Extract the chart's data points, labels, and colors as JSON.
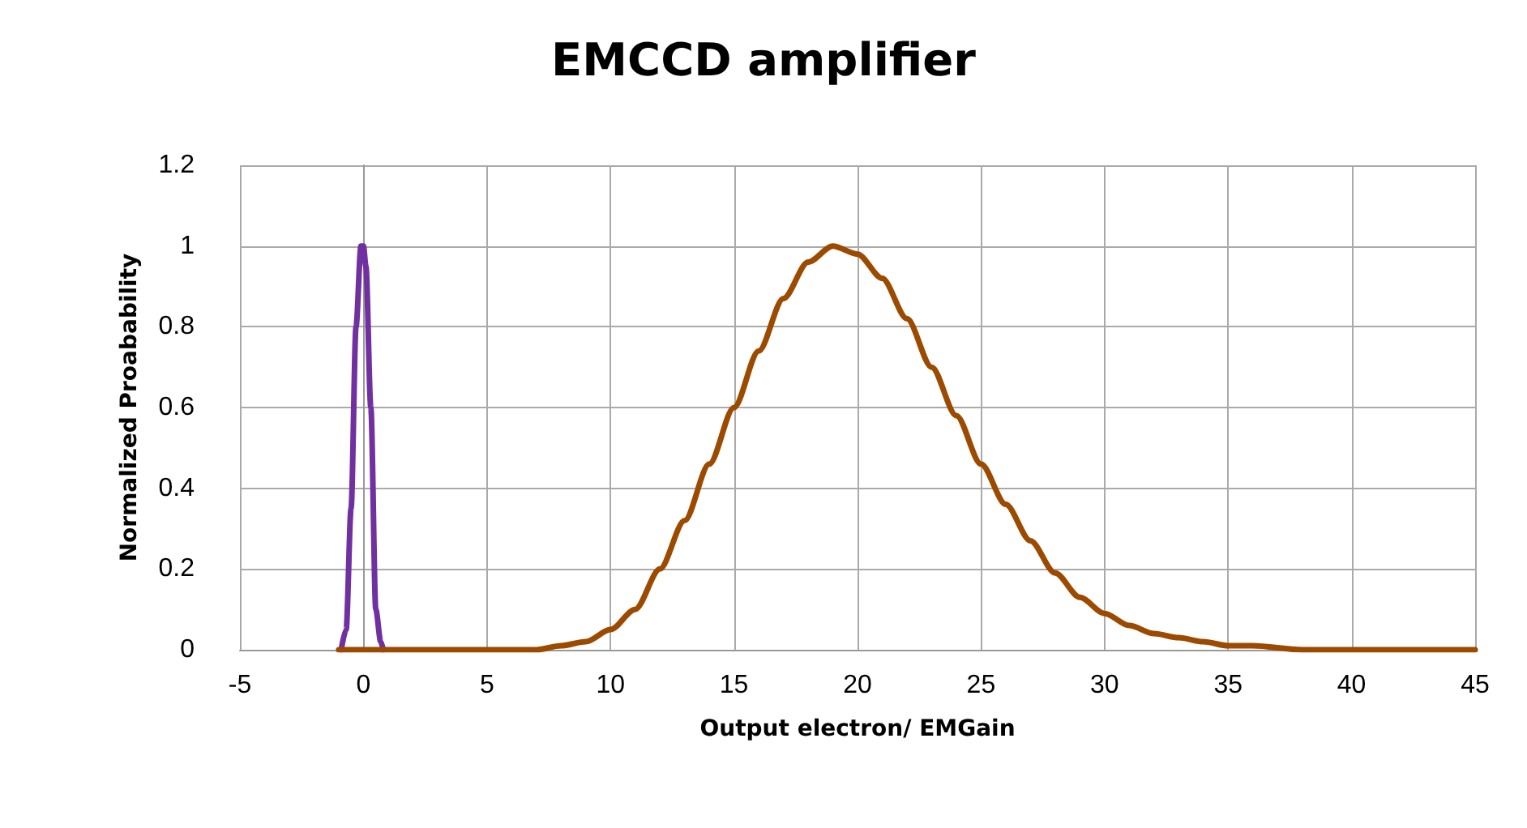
{
  "chart_data": {
    "type": "line",
    "title": "EMCCD amplifier",
    "xlabel": "Output electron/ EMGain",
    "ylabel": "Normalized Proabability",
    "xlim": [
      -5,
      45
    ],
    "xticks": [
      -5,
      0,
      5,
      10,
      15,
      20,
      25,
      30,
      35,
      40,
      45
    ],
    "ylim": [
      0,
      1.2
    ],
    "yticks": [
      0,
      0.2,
      0.4,
      0.6,
      0.8,
      1,
      1.2
    ],
    "grid": true,
    "marker": "none",
    "line_style": "solid",
    "series": [
      {
        "color": "#7030a0",
        "x": [
          -0.9,
          -0.7,
          -0.5,
          -0.3,
          -0.1,
          0,
          0.1,
          0.3,
          0.5,
          0.7,
          0.8
        ],
        "values": [
          0,
          0.05,
          0.35,
          0.8,
          1,
          1,
          0.95,
          0.6,
          0.1,
          0.02,
          0
        ]
      },
      {
        "color": "#9c4a00",
        "x": [
          -1,
          5,
          7,
          8,
          9,
          10,
          11,
          12,
          13,
          14,
          15,
          16,
          17,
          18,
          19,
          20,
          21,
          22,
          23,
          24,
          25,
          26,
          27,
          28,
          29,
          30,
          31,
          32,
          33,
          34,
          35,
          36,
          38,
          45
        ],
        "values": [
          0,
          0,
          0,
          0.01,
          0.02,
          0.05,
          0.1,
          0.2,
          0.32,
          0.46,
          0.6,
          0.74,
          0.87,
          0.96,
          1,
          0.98,
          0.92,
          0.82,
          0.7,
          0.58,
          0.46,
          0.36,
          0.27,
          0.19,
          0.13,
          0.09,
          0.06,
          0.04,
          0.03,
          0.02,
          0.01,
          0.01,
          0,
          0
        ]
      }
    ]
  }
}
